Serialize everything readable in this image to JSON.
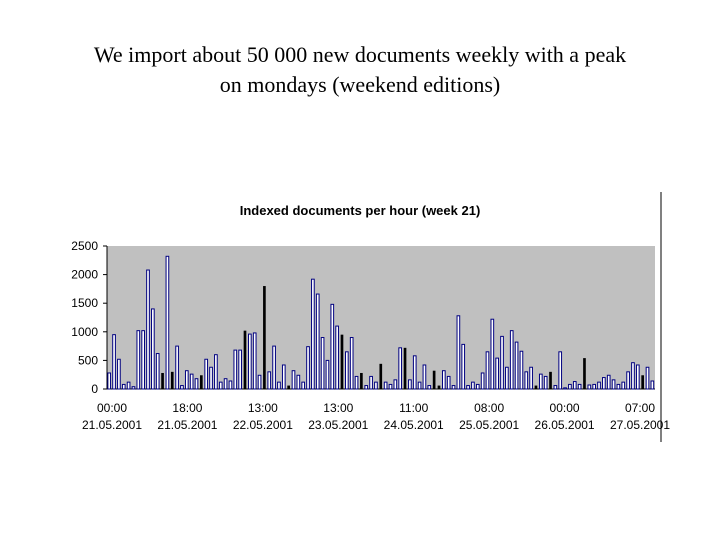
{
  "slide": {
    "title_line1": "We import about 50 000 new documents weekly with a peak",
    "title_line2": "on mondays (weekend editions)"
  },
  "colors": {
    "plot_background": "#c0c0c0",
    "bar_fill": "#ffffff",
    "bar_stroke": "#000080",
    "dark_bar_fill": "#000000"
  },
  "chart_data": {
    "type": "bar",
    "title": "Indexed documents per hour (week 21)",
    "xlabel": "",
    "ylabel": "",
    "ylim": [
      0,
      2500
    ],
    "yticks": [
      0,
      500,
      1000,
      1500,
      2000,
      2500
    ],
    "grid": false,
    "legend": "none",
    "xtick_labels": [
      {
        "time": "00:00",
        "date": "21.05.2001"
      },
      {
        "time": "18:00",
        "date": "21.05.2001"
      },
      {
        "time": "13:00",
        "date": "22.05.2001"
      },
      {
        "time": "13:00",
        "date": "23.05.2001"
      },
      {
        "time": "11:00",
        "date": "24.05.2001"
      },
      {
        "time": "08:00",
        "date": "25.05.2001"
      },
      {
        "time": "00:00",
        "date": "26.05.2001"
      },
      {
        "time": "07:00",
        "date": "27.05.2001"
      }
    ],
    "values": [
      280,
      950,
      520,
      80,
      120,
      40,
      1020,
      1020,
      2080,
      1400,
      620,
      280,
      2320,
      300,
      750,
      60,
      320,
      260,
      180,
      240,
      520,
      380,
      600,
      120,
      180,
      140,
      680,
      680,
      1020,
      960,
      980,
      240,
      1800,
      300,
      750,
      120,
      420,
      60,
      320,
      240,
      120,
      740,
      1920,
      1660,
      900,
      500,
      1480,
      1100,
      950,
      650,
      900,
      220,
      280,
      60,
      220,
      120,
      440,
      120,
      80,
      160,
      720,
      720,
      160,
      580,
      120,
      420,
      60,
      320,
      60,
      320,
      220,
      60,
      1280,
      780,
      60,
      120,
      80,
      280,
      650,
      1220,
      540,
      920,
      380,
      1020,
      820,
      660,
      300,
      380,
      60,
      260,
      220,
      300,
      60,
      650,
      20,
      80,
      130,
      80,
      540,
      70,
      80,
      120,
      200,
      240,
      160,
      80,
      120,
      300,
      460,
      420,
      240,
      380,
      140
    ],
    "dark_bar_indices": [
      11,
      13,
      19,
      28,
      32,
      37,
      48,
      52,
      56,
      61,
      67,
      68,
      88,
      91,
      98,
      110
    ]
  }
}
